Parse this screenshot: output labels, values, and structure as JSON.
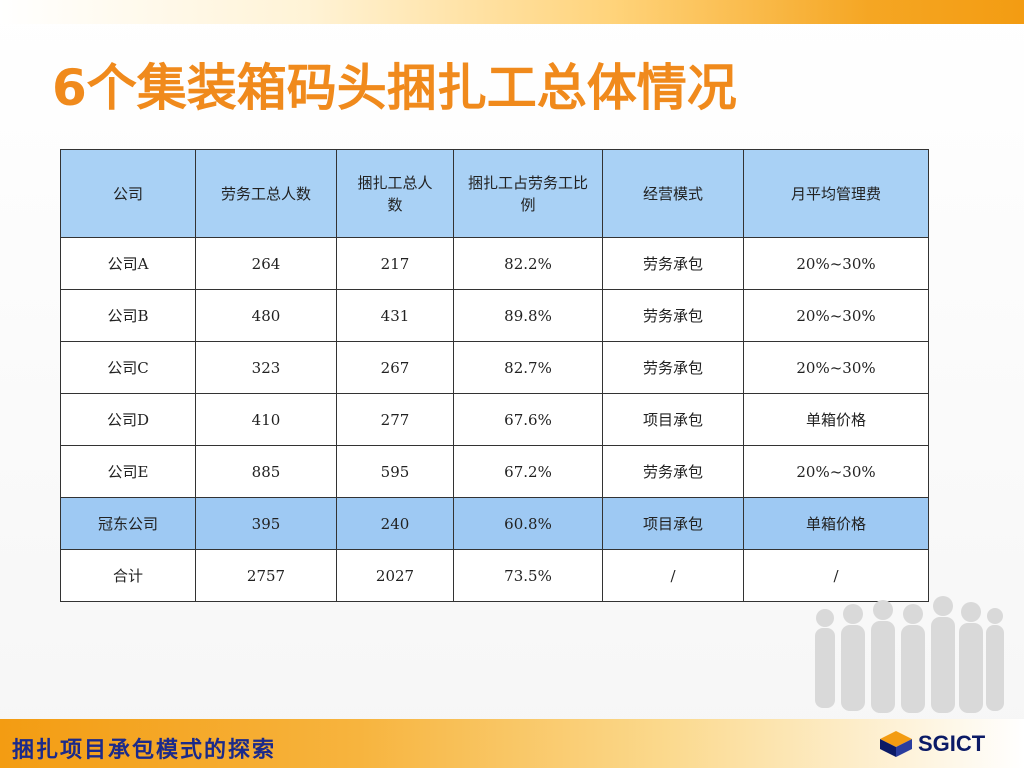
{
  "slide": {
    "title": "6个集装箱码头捆扎工总体情况",
    "footer": "捆扎项目承包模式的探索",
    "logo_text": "SGICT"
  },
  "table": {
    "headers": [
      "公司",
      "劳务工总人数",
      "捆扎工总人数",
      "捆扎工占劳务工比例",
      "经营模式",
      "月平均管理费"
    ],
    "rows": [
      [
        "公司A",
        "264",
        "217",
        "82.2%",
        "劳务承包",
        "20%~30%"
      ],
      [
        "公司B",
        "480",
        "431",
        "89.8%",
        "劳务承包",
        "20%~30%"
      ],
      [
        "公司C",
        "323",
        "267",
        "82.7%",
        "劳务承包",
        "20%~30%"
      ],
      [
        "公司D",
        "410",
        "277",
        "67.6%",
        "项目承包",
        "单箱价格"
      ],
      [
        "公司E",
        "885",
        "595",
        "67.2%",
        "劳务承包",
        "20%~30%"
      ],
      [
        "冠东公司",
        "395",
        "240",
        "60.8%",
        "项目承包",
        "单箱价格"
      ],
      [
        "合计",
        "2757",
        "2027",
        "73.5%",
        "/",
        "/"
      ]
    ],
    "highlight_row_color": "#9ec9f3",
    "header_color": "#a9d1f5"
  },
  "colors": {
    "title": "#f08a1c",
    "footer_text": "#1b2a8a",
    "accent_orange": "#f39c12"
  },
  "icons": {
    "logo": "sgict-cube-logo",
    "decoration": "people-silhouette-group"
  }
}
